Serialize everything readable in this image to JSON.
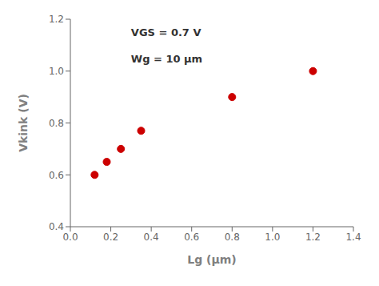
{
  "chart_data": {
    "type": "scatter",
    "x": [
      0.12,
      0.18,
      0.25,
      0.35,
      0.8,
      1.2
    ],
    "values": [
      0.6,
      0.65,
      0.7,
      0.77,
      0.9,
      1.0
    ],
    "color": "#CC0000",
    "xlabel": "Lg (μm)",
    "ylabel": "Vkink (V)",
    "xlim": [
      0.0,
      1.4
    ],
    "ylim": [
      0.4,
      1.2
    ],
    "xticks": [
      {
        "value": 0.0,
        "label": "0.0"
      },
      0.2,
      0.4,
      0.6,
      0.8,
      {
        "value": 1.0,
        "label": "1.0"
      },
      1.2,
      1.4
    ],
    "yticks": [
      0.4,
      0.6,
      0.8,
      {
        "value": 1.0,
        "label": "1.0"
      },
      1.2
    ],
    "annotations": [
      {
        "text": "VGS = 0.7 V",
        "x": 0.3,
        "y": 1.17
      },
      {
        "text": "Wg = 10 μm",
        "x": 0.3,
        "y": 1.07
      }
    ],
    "grid": false
  }
}
